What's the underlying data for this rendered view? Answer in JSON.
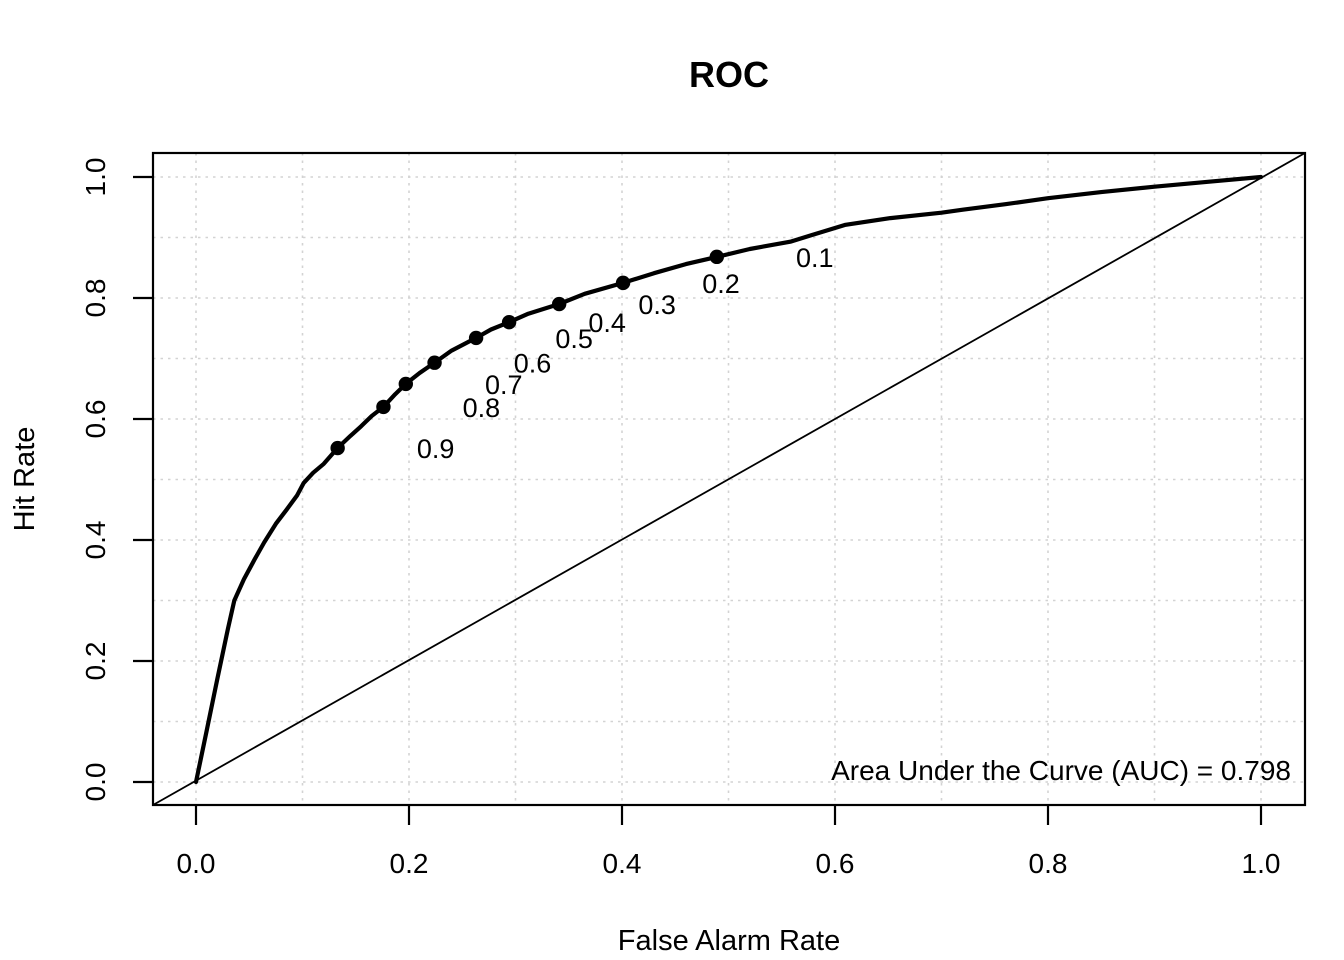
{
  "chart_data": {
    "type": "line",
    "title": "ROC",
    "xlabel": "False Alarm Rate",
    "ylabel": "Hit Rate",
    "xlim": [
      0.0,
      1.0
    ],
    "ylim": [
      0.0,
      1.0
    ],
    "x_ticks": [
      "0.0",
      "0.2",
      "0.4",
      "0.6",
      "0.8",
      "1.0"
    ],
    "y_ticks": [
      "0.0",
      "0.2",
      "0.4",
      "0.6",
      "0.8",
      "1.0"
    ],
    "grid": {
      "step": 0.1,
      "style": "dotted",
      "on": true
    },
    "legend_position": "none",
    "annotation": "Area Under the Curve (AUC) = 0.798",
    "auc_value": 0.798,
    "series": [
      {
        "name": "ROC curve",
        "style": "thick-solid",
        "points": [
          [
            0.0,
            0.0
          ],
          [
            0.01,
            0.085
          ],
          [
            0.02,
            0.17
          ],
          [
            0.03,
            0.253
          ],
          [
            0.036,
            0.3
          ],
          [
            0.045,
            0.335
          ],
          [
            0.055,
            0.368
          ],
          [
            0.064,
            0.396
          ],
          [
            0.075,
            0.427
          ],
          [
            0.085,
            0.45
          ],
          [
            0.095,
            0.474
          ],
          [
            0.101,
            0.494
          ],
          [
            0.11,
            0.511
          ],
          [
            0.12,
            0.526
          ],
          [
            0.133,
            0.552
          ],
          [
            0.145,
            0.572
          ],
          [
            0.155,
            0.588
          ],
          [
            0.165,
            0.605
          ],
          [
            0.176,
            0.62
          ],
          [
            0.187,
            0.641
          ],
          [
            0.197,
            0.658
          ],
          [
            0.21,
            0.676
          ],
          [
            0.224,
            0.693
          ],
          [
            0.24,
            0.713
          ],
          [
            0.263,
            0.734
          ],
          [
            0.277,
            0.748
          ],
          [
            0.294,
            0.76
          ],
          [
            0.312,
            0.774
          ],
          [
            0.341,
            0.79
          ],
          [
            0.365,
            0.807
          ],
          [
            0.401,
            0.825
          ],
          [
            0.43,
            0.841
          ],
          [
            0.46,
            0.856
          ],
          [
            0.489,
            0.868
          ],
          [
            0.52,
            0.881
          ],
          [
            0.558,
            0.893
          ],
          [
            0.578,
            0.904
          ],
          [
            0.61,
            0.921
          ],
          [
            0.652,
            0.932
          ],
          [
            0.7,
            0.941
          ],
          [
            0.72,
            0.946
          ],
          [
            0.76,
            0.955
          ],
          [
            0.8,
            0.965
          ],
          [
            0.85,
            0.975
          ],
          [
            0.9,
            0.984
          ],
          [
            0.95,
            0.992
          ],
          [
            1.0,
            1.0
          ]
        ]
      },
      {
        "name": "chance diagonal",
        "style": "thin-solid",
        "points": [
          [
            0.0,
            0.0
          ],
          [
            1.0,
            1.0
          ]
        ]
      }
    ],
    "threshold_points": [
      {
        "label": "0.1",
        "false_alarm_rate": 0.489,
        "hit_rate": 0.868
      },
      {
        "label": "0.2",
        "false_alarm_rate": 0.401,
        "hit_rate": 0.825
      },
      {
        "label": "0.3",
        "false_alarm_rate": 0.341,
        "hit_rate": 0.79
      },
      {
        "label": "0.4",
        "false_alarm_rate": 0.294,
        "hit_rate": 0.76
      },
      {
        "label": "0.5",
        "false_alarm_rate": 0.263,
        "hit_rate": 0.734
      },
      {
        "label": "0.6",
        "false_alarm_rate": 0.224,
        "hit_rate": 0.693
      },
      {
        "label": "0.7",
        "false_alarm_rate": 0.197,
        "hit_rate": 0.658
      },
      {
        "label": "0.8",
        "false_alarm_rate": 0.176,
        "hit_rate": 0.62
      },
      {
        "label": "0.9",
        "false_alarm_rate": 0.133,
        "hit_rate": 0.552
      }
    ]
  },
  "colors": {
    "ink": "#000000",
    "grid": "#d3d3d3",
    "background": "#ffffff"
  }
}
